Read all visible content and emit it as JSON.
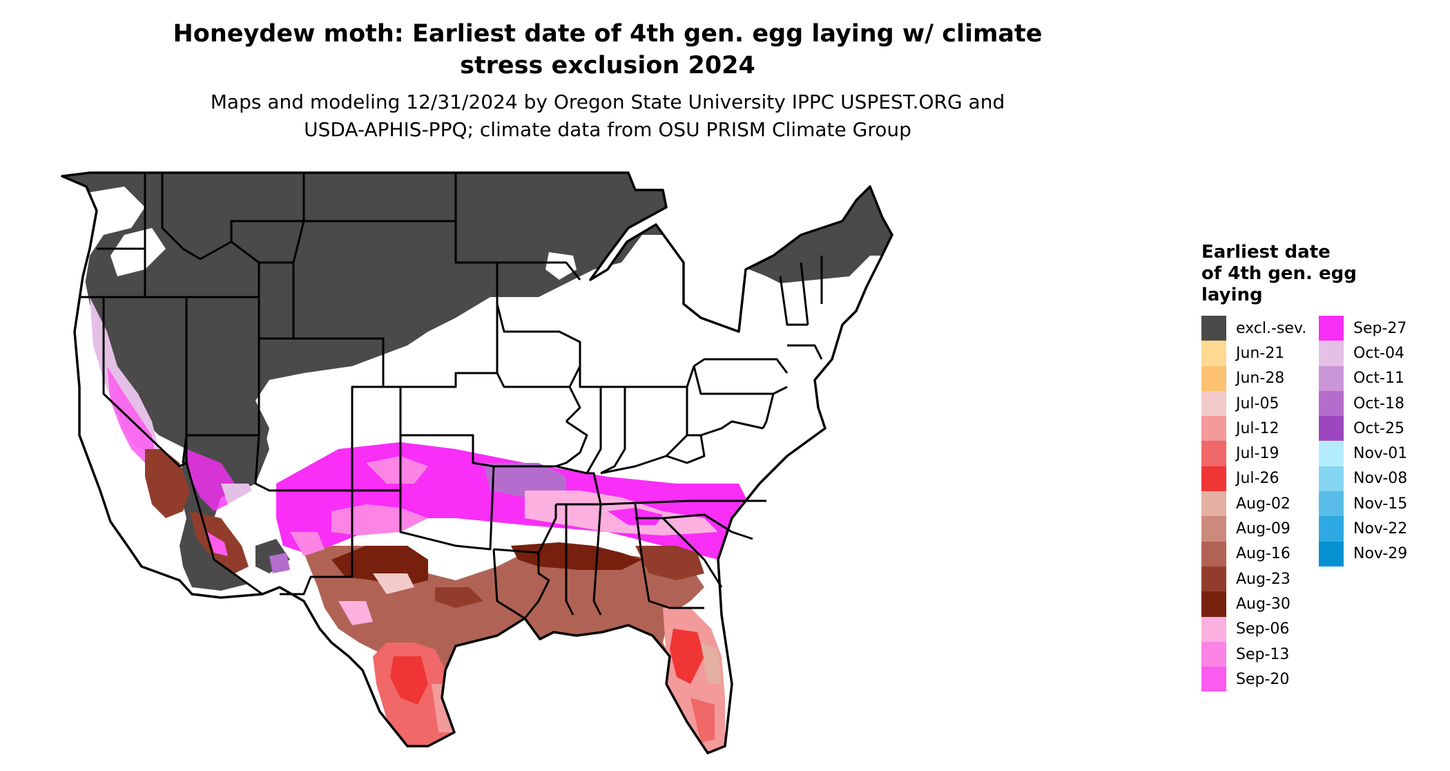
{
  "title_line1": "Honeydew moth: Earliest date of 4th gen. egg laying w/ climate",
  "title_line2": "stress exclusion 2024",
  "subtitle_line1": "Maps and modeling 12/31/2024 by Oregon State University IPPC USPEST.ORG and",
  "subtitle_line2": "USDA-APHIS-PPQ; climate data from OSU PRISM Climate Group",
  "legend": {
    "title_line1": "Earliest date",
    "title_line2": "of 4th gen. egg",
    "title_line3": "laying",
    "items": [
      {
        "label": "excl.-sev.",
        "color": "#4a4a4a"
      },
      {
        "label": "Jun-21",
        "color": "#fdd992"
      },
      {
        "label": "Jun-28",
        "color": "#fcc171"
      },
      {
        "label": "Jul-05",
        "color": "#f2caca"
      },
      {
        "label": "Jul-12",
        "color": "#f39a9a"
      },
      {
        "label": "Jul-19",
        "color": "#f06868"
      },
      {
        "label": "Jul-26",
        "color": "#f03535"
      },
      {
        "label": "Aug-02",
        "color": "#e3b0a2"
      },
      {
        "label": "Aug-09",
        "color": "#cc8a7c"
      },
      {
        "label": "Aug-16",
        "color": "#b06354"
      },
      {
        "label": "Aug-23",
        "color": "#923d2c"
      },
      {
        "label": "Aug-30",
        "color": "#77200e"
      },
      {
        "label": "Sep-06",
        "color": "#fbb0e0"
      },
      {
        "label": "Sep-13",
        "color": "#fb84e4"
      },
      {
        "label": "Sep-20",
        "color": "#fb5cef"
      },
      {
        "label": "Sep-27",
        "color": "#f92ef7"
      },
      {
        "label": "Oct-04",
        "color": "#e4c0e6"
      },
      {
        "label": "Oct-11",
        "color": "#cb96d8"
      },
      {
        "label": "Oct-18",
        "color": "#b56dcd"
      },
      {
        "label": "Oct-25",
        "color": "#9c47c0"
      },
      {
        "label": "Nov-01",
        "color": "#b3ecfd"
      },
      {
        "label": "Nov-08",
        "color": "#85d6f3"
      },
      {
        "label": "Nov-15",
        "color": "#58bee9"
      },
      {
        "label": "Nov-22",
        "color": "#2ea8e2"
      },
      {
        "label": "Nov-29",
        "color": "#0691d3"
      }
    ]
  }
}
